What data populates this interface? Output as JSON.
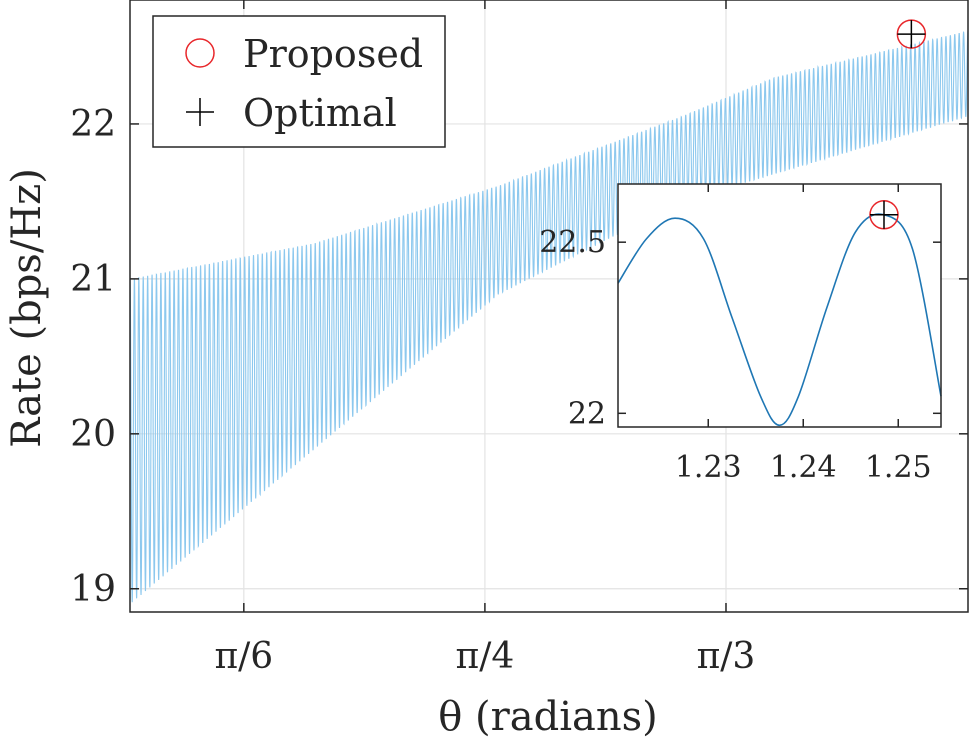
{
  "chart_data": [
    {
      "type": "line",
      "title": "",
      "xlabel": "θ (radians)",
      "ylabel": "Rate (bps/Hz)",
      "xlim": [
        0.4,
        1.31
      ],
      "ylim": [
        18.85,
        22.8
      ],
      "xticks": [
        {
          "value": 0.5236,
          "label": "π/6"
        },
        {
          "value": 0.7854,
          "label": "π/4"
        },
        {
          "value": 1.0472,
          "label": "π/3"
        }
      ],
      "yticks": [
        {
          "value": 19,
          "label": "19"
        },
        {
          "value": 20,
          "label": "20"
        },
        {
          "value": 21,
          "label": "21"
        },
        {
          "value": 22,
          "label": "22"
        }
      ],
      "grid": true,
      "legend_position": "top-left",
      "series": [
        {
          "name": "",
          "style": "line",
          "color": "#8cc8ee",
          "description_values": {
            "upper_envelope": [
              [
                0.4,
                21.0
              ],
              [
                0.6,
                21.23
              ],
              [
                0.8,
                21.6
              ],
              [
                1.0,
                22.05
              ],
              [
                1.1,
                22.3
              ],
              [
                1.31,
                22.6
              ]
            ],
            "lower_envelope": [
              [
                0.4,
                18.9
              ],
              [
                0.5,
                19.4
              ],
              [
                0.7,
                20.4
              ],
              [
                0.8,
                20.9
              ],
              [
                1.0,
                21.5
              ],
              [
                1.31,
                22.05
              ]
            ],
            "oscillations": 190
          }
        },
        {
          "name": "Proposed",
          "style": "marker-circle",
          "color": "#e8262a",
          "points": [
            [
              1.2485,
              22.58
            ]
          ]
        },
        {
          "name": "Optimal",
          "style": "marker-plus",
          "color": "#000000",
          "points": [
            [
              1.2485,
              22.58
            ]
          ]
        }
      ]
    },
    {
      "type": "line",
      "title": "",
      "xlim": [
        1.2205,
        1.2545
      ],
      "ylim": [
        21.96,
        22.67
      ],
      "xticks": [
        {
          "value": 1.23,
          "label": "1.23"
        },
        {
          "value": 1.24,
          "label": "1.24"
        },
        {
          "value": 1.25,
          "label": "1.25"
        }
      ],
      "yticks": [
        {
          "value": 22,
          "label": "22"
        },
        {
          "value": 22.5,
          "label": "22.5"
        }
      ],
      "grid": false,
      "series": [
        {
          "name": "",
          "color": "#1f77b4",
          "points": [
            [
              1.2205,
              22.38
            ],
            [
              1.2235,
              22.51
            ],
            [
              1.2265,
              22.57
            ],
            [
              1.2295,
              22.51
            ],
            [
              1.2325,
              22.28
            ],
            [
              1.2355,
              22.05
            ],
            [
              1.2375,
              21.965
            ],
            [
              1.2395,
              22.05
            ],
            [
              1.2425,
              22.31
            ],
            [
              1.2455,
              22.53
            ],
            [
              1.2485,
              22.58
            ],
            [
              1.2515,
              22.48
            ],
            [
              1.2545,
              22.05
            ]
          ]
        },
        {
          "name": "Proposed",
          "style": "marker-circle",
          "color": "#e8262a",
          "points": [
            [
              1.2485,
              22.58
            ]
          ]
        },
        {
          "name": "Optimal",
          "style": "marker-plus",
          "color": "#000000",
          "points": [
            [
              1.2485,
              22.58
            ]
          ]
        }
      ]
    }
  ]
}
